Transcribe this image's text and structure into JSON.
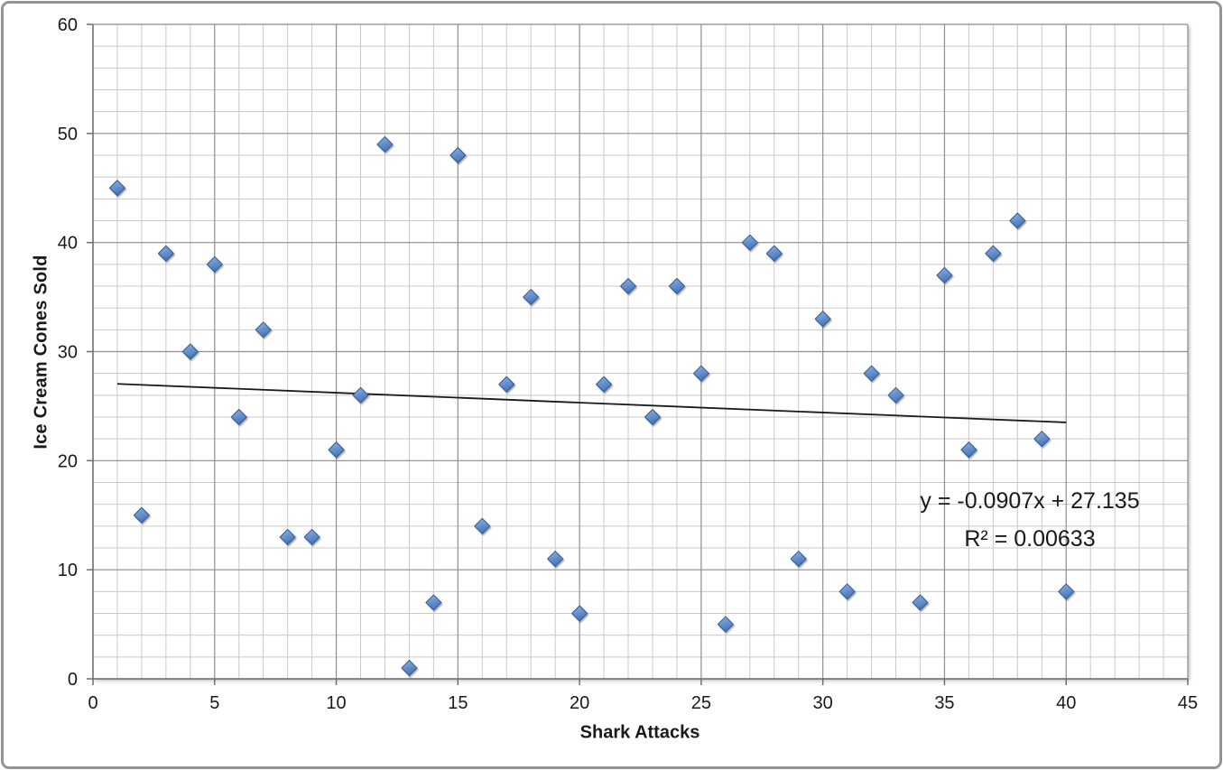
{
  "chart_data": {
    "type": "scatter",
    "title": "",
    "xlabel": "Shark Attacks",
    "ylabel": "Ice Cream Cones Sold",
    "xlim": [
      0,
      45
    ],
    "ylim": [
      0,
      60
    ],
    "x_tick_labels": [
      0,
      5,
      10,
      15,
      20,
      25,
      30,
      35,
      40,
      45
    ],
    "y_tick_labels": [
      0,
      10,
      20,
      30,
      40,
      50,
      60
    ],
    "x_minor_step": 1,
    "y_minor_step": 2,
    "grid": "major and minor, both axes",
    "legend": "none",
    "marker": "diamond",
    "points": [
      [
        1,
        45
      ],
      [
        2,
        15
      ],
      [
        3,
        39
      ],
      [
        4,
        30
      ],
      [
        5,
        38
      ],
      [
        6,
        24
      ],
      [
        7,
        32
      ],
      [
        8,
        13
      ],
      [
        9,
        13
      ],
      [
        10,
        21
      ],
      [
        11,
        26
      ],
      [
        12,
        49
      ],
      [
        13,
        1
      ],
      [
        14,
        7
      ],
      [
        15,
        48
      ],
      [
        16,
        14
      ],
      [
        17,
        27
      ],
      [
        18,
        35
      ],
      [
        19,
        11
      ],
      [
        20,
        6
      ],
      [
        21,
        27
      ],
      [
        22,
        36
      ],
      [
        23,
        24
      ],
      [
        24,
        36
      ],
      [
        25,
        28
      ],
      [
        26,
        5
      ],
      [
        27,
        40
      ],
      [
        28,
        39
      ],
      [
        29,
        11
      ],
      [
        30,
        33
      ],
      [
        31,
        8
      ],
      [
        32,
        28
      ],
      [
        33,
        26
      ],
      [
        34,
        7
      ],
      [
        35,
        37
      ],
      [
        36,
        21
      ],
      [
        37,
        39
      ],
      [
        38,
        42
      ],
      [
        39,
        22
      ],
      [
        40,
        8
      ]
    ],
    "trendline": {
      "type": "linear",
      "slope": -0.0907,
      "intercept": 27.135,
      "x_start": 1,
      "x_end": 40,
      "equation": "y = -0.0907x + 27.135",
      "r_squared": "R² = 0.00633"
    },
    "colors": {
      "marker_fill_light": "#8FB3E2",
      "marker_fill_dark": "#4675B7",
      "marker_stroke": "#2E5894",
      "grid_minor": "#C9C9C9",
      "grid_major": "#8E8E8E",
      "axis_line": "#6E6E6E",
      "trendline": "#1A1A1A",
      "label_text": "#1A1A1A",
      "window_border": "#949494"
    }
  }
}
